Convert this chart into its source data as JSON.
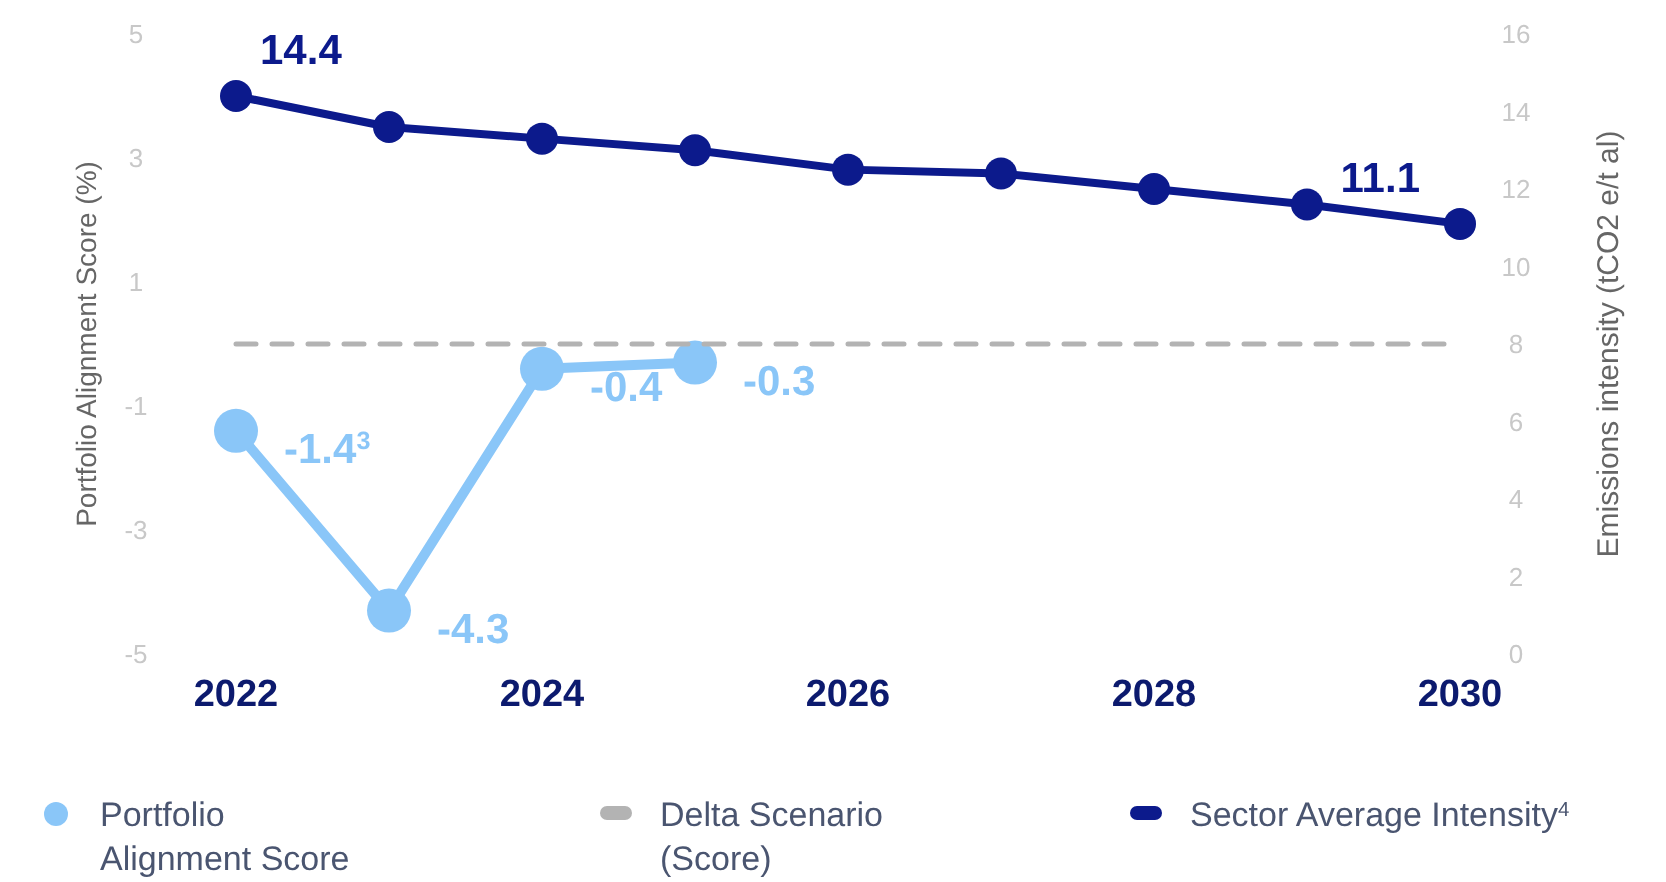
{
  "chart_data": {
    "type": "line",
    "ylabel": "Portfolio Alignment Score (%)",
    "y2label": "Emissions intensity (tCO2 e/t al)",
    "x": [
      2022,
      2023,
      2024,
      2025,
      2026,
      2027,
      2028,
      2029,
      2030
    ],
    "xlim": [
      2022,
      2030
    ],
    "xticks": [
      2022,
      2024,
      2026,
      2028,
      2030
    ],
    "ylim": [
      -5,
      5
    ],
    "yticks": [
      -5,
      -3,
      -1,
      1,
      3,
      5
    ],
    "y2lim": [
      0,
      16
    ],
    "y2ticks": [
      0,
      2,
      4,
      6,
      8,
      10,
      12,
      14,
      16
    ],
    "grid": false,
    "legend": "bottom",
    "series": [
      {
        "name": "Portfolio Alignment Score",
        "color": "#8ac6f8",
        "marker": "circle",
        "values": [
          -1.4,
          -4.3,
          -0.4,
          -0.3,
          null,
          null,
          null,
          null,
          null
        ],
        "value_labels": [
          "-1.4$^{3}$",
          "-4.3",
          "-0.4",
          "-0.3",
          null,
          null,
          null,
          null,
          null
        ]
      },
      {
        "name": "Delta Scenario (Score)",
        "color": "#b3b3b3",
        "marker": "none",
        "line_style": "dashed",
        "values": [
          0,
          0,
          0,
          0,
          0,
          0,
          0,
          0,
          0
        ]
      },
      {
        "name": "Sector Average Intensity$^{4}$",
        "color": "#0c1a8c",
        "marker": "circle",
        "axis": "y2",
        "values": [
          14.4,
          13.6,
          13.3,
          13.0,
          12.5,
          12.4,
          12.0,
          11.6,
          11.1
        ],
        "value_labels": [
          "14.4",
          null,
          null,
          null,
          null,
          null,
          null,
          null,
          "11.1"
        ]
      }
    ]
  }
}
